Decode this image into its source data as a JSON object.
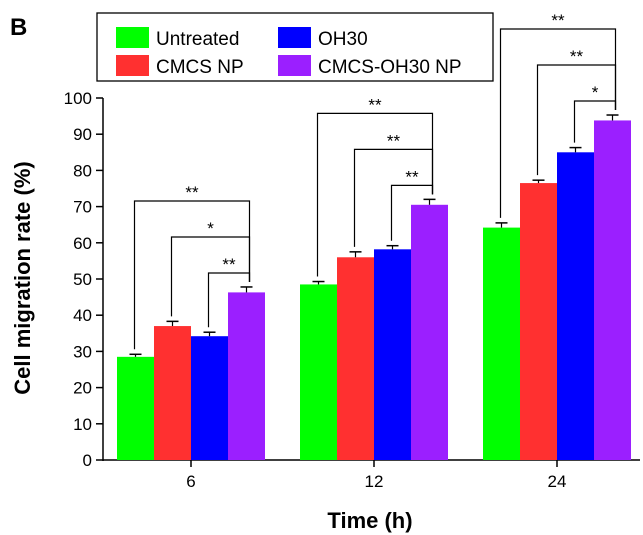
{
  "panel_label": "B",
  "chart_data": {
    "type": "bar",
    "categories": [
      "6",
      "12",
      "24"
    ],
    "series": [
      {
        "name": "Untreated",
        "color": "#00ff00",
        "values": [
          28.5,
          48.5,
          64.2
        ],
        "errors": [
          0.7,
          0.8,
          1.3
        ]
      },
      {
        "name": "CMCS NP",
        "color": "#ff3030",
        "values": [
          37.0,
          56.0,
          76.5
        ],
        "errors": [
          1.3,
          1.5,
          0.8
        ]
      },
      {
        "name": "OH30",
        "color": "#0000ff",
        "values": [
          34.2,
          58.2,
          85.0
        ],
        "errors": [
          1.1,
          1.0,
          1.3
        ]
      },
      {
        "name": "CMCS-OH30 NP",
        "color": "#9b1fff",
        "values": [
          46.3,
          70.5,
          93.8
        ],
        "errors": [
          1.5,
          1.5,
          1.5
        ]
      }
    ],
    "xlabel": "Time (h)",
    "ylabel": "Cell migration rate (%)",
    "ylim": [
      0,
      100
    ],
    "yticks": [
      "0",
      "10",
      "20",
      "30",
      "40",
      "50",
      "60",
      "70",
      "80",
      "90",
      "100"
    ],
    "legend_position": "top",
    "significance": [
      [
        {
          "from": 0,
          "label": "**"
        },
        {
          "from": 1,
          "label": "*"
        },
        {
          "from": 2,
          "label": "**"
        }
      ],
      [
        {
          "from": 0,
          "label": "**"
        },
        {
          "from": 1,
          "label": "**"
        },
        {
          "from": 2,
          "label": "**"
        }
      ],
      [
        {
          "from": 0,
          "label": "**"
        },
        {
          "from": 1,
          "label": "**"
        },
        {
          "from": 2,
          "label": "*"
        }
      ]
    ]
  }
}
